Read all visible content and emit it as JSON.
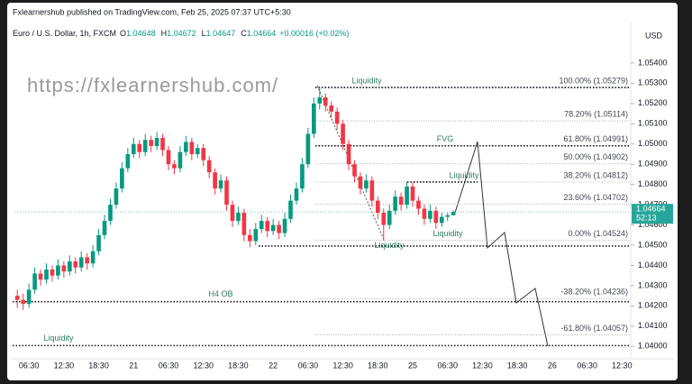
{
  "header": {
    "publisher": "Fxlearnershub published on TradingView.com, Feb 25, 2025 07:37 UTC+5:30",
    "symbol": "Euro / U.S. Dollar, 1h, FXCM",
    "ohlc": [
      {
        "key": "O",
        "value": 1.04648
      },
      {
        "key": "H",
        "value": 1.04672
      },
      {
        "key": "L",
        "value": 1.04647
      },
      {
        "key": "C",
        "value": 1.04664
      }
    ],
    "change": "+0.00016 (+0.02%)",
    "currency": "USD",
    "watermark": "https://fxlearnershub.com/"
  },
  "chart_data": {
    "type": "candlestick",
    "up_color": "#089981",
    "down_color": "#f23645",
    "categories": [
      null,
      null,
      "06:30",
      null,
      null,
      null,
      null,
      null,
      "12:30",
      null,
      null,
      null,
      null,
      null,
      "18:30",
      null,
      null,
      null,
      null,
      null,
      "21",
      null,
      null,
      null,
      null,
      null,
      "06:30",
      null,
      null,
      null,
      null,
      null,
      "12:30",
      null,
      null,
      null,
      null,
      null,
      "18:30",
      null,
      null,
      null,
      null,
      null,
      "22",
      null,
      null,
      null,
      null,
      null,
      "06:30",
      null,
      null,
      null,
      null,
      null,
      "12:30",
      null,
      null,
      null,
      null,
      null,
      "18:30",
      null,
      null,
      null,
      null,
      null,
      "25",
      null,
      null,
      null,
      null,
      null,
      "06:30",
      null,
      null,
      null,
      null,
      null,
      "12:30",
      null,
      null,
      null,
      null,
      null,
      "18:30",
      null,
      null,
      null,
      null,
      null,
      "26",
      null,
      null,
      null,
      null,
      null,
      "06:30",
      null,
      null,
      null,
      null,
      null,
      "12:30",
      null
    ],
    "open": [
      1.0425,
      1.0423,
      1.0421,
      1.0428,
      1.0436,
      1.0433,
      1.0438,
      1.0435,
      1.044,
      1.0437,
      1.0442,
      1.0439,
      1.0444,
      1.0441,
      1.0447,
      1.0455,
      1.0462,
      1.047,
      1.0478,
      1.0488,
      1.0495,
      1.05,
      1.0496,
      1.0502,
      1.0499,
      1.0503,
      1.0497,
      1.049,
      1.0488,
      1.0496,
      1.0501,
      1.0495,
      1.0498,
      1.0492,
      1.0486,
      1.0478,
      1.0482,
      1.047,
      1.0462,
      1.0466,
      1.0455,
      1.0452,
      1.0458,
      1.0462,
      1.0457,
      1.046,
      1.0456,
      1.0463,
      1.0472,
      1.0478,
      1.049,
      1.0505,
      1.052,
      1.0523,
      1.0519,
      1.0516,
      1.051,
      1.05,
      1.049,
      1.0484,
      1.0478,
      1.0482,
      1.0472,
      1.0466,
      1.046,
      1.0467,
      1.0474,
      1.047,
      1.0479,
      1.0472,
      1.0468,
      1.0463,
      1.0467,
      1.0461,
      1.0464,
      1.04648,
      null,
      null,
      null,
      null,
      null,
      null,
      null,
      null,
      null,
      null,
      null,
      null,
      null,
      null,
      null,
      null,
      null,
      null,
      null,
      null,
      null,
      null,
      null,
      null,
      null,
      null,
      null,
      null,
      null,
      null
    ],
    "high": [
      1.0428,
      1.0426,
      1.0431,
      1.0439,
      1.0438,
      1.0441,
      1.044,
      1.0443,
      1.0442,
      1.0445,
      1.0444,
      1.0447,
      1.0446,
      1.045,
      1.0458,
      1.0465,
      1.0473,
      1.0481,
      1.0491,
      1.0498,
      1.0503,
      1.0502,
      1.0505,
      1.0504,
      1.0506,
      1.0505,
      1.0499,
      1.0492,
      1.0499,
      1.0504,
      1.0503,
      1.05,
      1.05,
      1.0494,
      1.0488,
      1.0485,
      1.0484,
      1.0472,
      1.0469,
      1.0468,
      1.0458,
      1.0461,
      1.0465,
      1.0464,
      1.0463,
      1.0462,
      1.0466,
      1.0475,
      1.0481,
      1.0493,
      1.0508,
      1.0523,
      1.05279,
      1.0525,
      1.0521,
      1.0518,
      1.0512,
      1.0502,
      1.0492,
      1.0486,
      1.0485,
      1.0484,
      1.0474,
      1.0468,
      1.047,
      1.0477,
      1.0476,
      1.04812,
      1.0481,
      1.0474,
      1.047,
      1.047,
      1.0469,
      1.0466,
      1.0466,
      1.04672,
      null,
      null,
      null,
      null,
      null,
      null,
      null,
      null,
      null,
      null,
      null,
      null,
      null,
      null,
      null,
      null,
      null,
      null,
      null,
      null,
      null,
      null,
      null,
      null,
      null,
      null,
      null,
      null,
      null,
      null
    ],
    "low": [
      1.0419,
      1.0418,
      1.0419,
      1.0426,
      1.043,
      1.0431,
      1.0432,
      1.0433,
      1.0434,
      1.0435,
      1.0436,
      1.0437,
      1.0438,
      1.0439,
      1.0445,
      1.0453,
      1.046,
      1.0468,
      1.0476,
      1.0486,
      1.0493,
      1.0493,
      1.0494,
      1.0496,
      1.0497,
      1.0494,
      1.0487,
      1.0485,
      1.0486,
      1.0494,
      1.0492,
      1.0493,
      1.0489,
      1.0483,
      1.0475,
      1.0476,
      1.0467,
      1.0459,
      1.046,
      1.0452,
      1.0449,
      1.045,
      1.0456,
      1.0454,
      1.0455,
      1.0453,
      1.0454,
      1.0461,
      1.047,
      1.0476,
      1.0488,
      1.0503,
      1.0517,
      1.0516,
      1.0513,
      1.0507,
      1.0497,
      1.0487,
      1.0481,
      1.0475,
      1.0476,
      1.0469,
      1.0463,
      1.04524,
      1.0458,
      1.0465,
      1.0467,
      1.0468,
      1.0469,
      1.0465,
      1.046,
      1.0461,
      1.0458,
      1.0459,
      1.0462,
      1.04647,
      null,
      null,
      null,
      null,
      null,
      null,
      null,
      null,
      null,
      null,
      null,
      null,
      null,
      null,
      null,
      null,
      null,
      null,
      null,
      null,
      null,
      null,
      null,
      null,
      null,
      null,
      null,
      null,
      null,
      null
    ],
    "close": [
      1.0423,
      1.0421,
      1.0428,
      1.0436,
      1.0433,
      1.0438,
      1.0435,
      1.044,
      1.0437,
      1.0442,
      1.0439,
      1.0444,
      1.0441,
      1.0447,
      1.0455,
      1.0462,
      1.047,
      1.0478,
      1.0488,
      1.0495,
      1.05,
      1.0496,
      1.0502,
      1.0499,
      1.0503,
      1.0497,
      1.049,
      1.0488,
      1.0496,
      1.0501,
      1.0495,
      1.0498,
      1.0492,
      1.0486,
      1.0478,
      1.0482,
      1.047,
      1.0462,
      1.0466,
      1.0455,
      1.0452,
      1.0458,
      1.0462,
      1.0457,
      1.046,
      1.0456,
      1.0463,
      1.0472,
      1.0478,
      1.049,
      1.0505,
      1.052,
      1.0523,
      1.0519,
      1.0516,
      1.051,
      1.05,
      1.049,
      1.0484,
      1.0478,
      1.0482,
      1.0472,
      1.0466,
      1.046,
      1.0467,
      1.0474,
      1.047,
      1.0479,
      1.0472,
      1.0468,
      1.0463,
      1.0467,
      1.0461,
      1.0464,
      1.04648,
      1.04664,
      null,
      null,
      null,
      null,
      null,
      null,
      null,
      null,
      null,
      null,
      null,
      null,
      null,
      null,
      null,
      null,
      null,
      null,
      null,
      null,
      null,
      null,
      null,
      null,
      null,
      null,
      null,
      null,
      null,
      null
    ],
    "ylim": [
      1.0393,
      1.056
    ],
    "yticks": [
      {
        "value": 1.04,
        "label": "1.04000"
      },
      {
        "value": 1.041,
        "label": "1.04100"
      },
      {
        "value": 1.042,
        "label": "1.04200"
      },
      {
        "value": 1.043,
        "label": "1.04300"
      },
      {
        "value": 1.044,
        "label": "1.04400"
      },
      {
        "value": 1.045,
        "label": "1.04500"
      },
      {
        "value": 1.046,
        "label": "1.04600"
      },
      {
        "value": 1.047,
        "label": "1.04700"
      },
      {
        "value": 1.048,
        "label": "1.04800"
      },
      {
        "value": 1.049,
        "label": "1.04900"
      },
      {
        "value": 1.05,
        "label": "1.05000"
      },
      {
        "value": 1.051,
        "label": "1.05100"
      },
      {
        "value": 1.052,
        "label": "1.05200"
      },
      {
        "value": 1.053,
        "label": "1.05300"
      },
      {
        "value": 1.054,
        "label": "1.05400"
      }
    ],
    "last_price": {
      "value": 1.04664,
      "label": "1.04664",
      "countdown": "52:13",
      "color": "#26a69a"
    },
    "fib_levels": [
      {
        "label": "100.00% (1.05279)",
        "value": 1.05279
      },
      {
        "label": "78.20% (1.05114)",
        "value": 1.05114
      },
      {
        "label": "61.80% (1.04991)",
        "value": 1.04991
      },
      {
        "label": "50.00% (1.04902)",
        "value": 1.04902
      },
      {
        "label": "38.20% (1.04812)",
        "value": 1.04812
      },
      {
        "label": "23.60% (1.04702)",
        "value": 1.04702
      },
      {
        "label": "0.00% (1.04524)",
        "value": 1.04524
      },
      {
        "label": "-38.20% (1.04236)",
        "value": 1.04236
      },
      {
        "label": "-61.80% (1.04057)",
        "value": 1.04057
      }
    ],
    "levels": [
      {
        "label": "Liquidity",
        "value": 1.05279
      },
      {
        "label": "FVG",
        "value": 1.04991
      },
      {
        "label": "Liquidity",
        "value": 1.04812
      },
      {
        "label": "Liquidity",
        "value": 1.04524
      },
      {
        "label": "Liquidity",
        "value": 1.04524
      },
      {
        "value": 1.04496
      },
      {
        "label": "H4 OB",
        "value": 1.04221
      },
      {
        "label": "Liquidity",
        "value": 1.04004
      }
    ]
  }
}
